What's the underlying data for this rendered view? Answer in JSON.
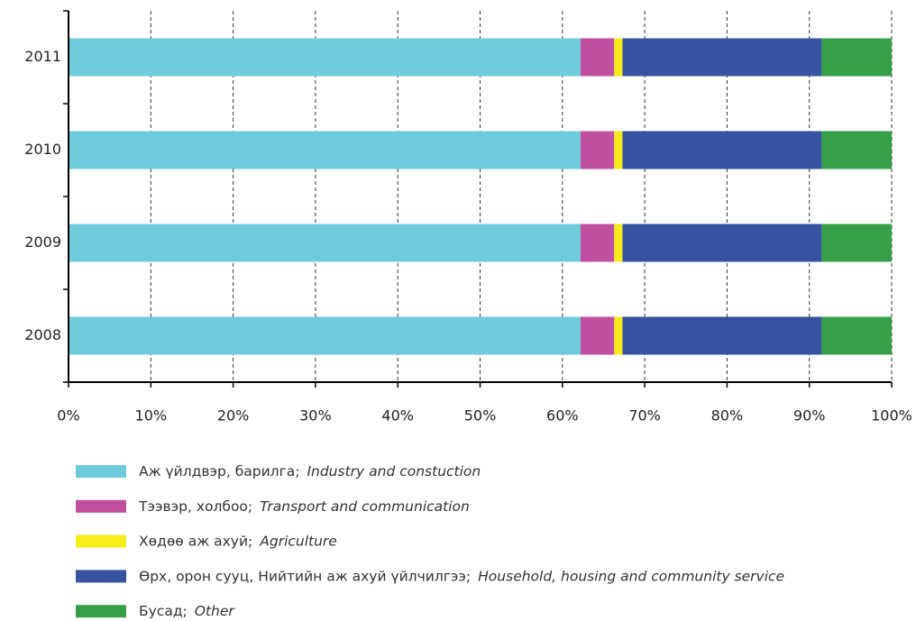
{
  "chart_data": {
    "type": "bar",
    "orientation": "horizontal",
    "stacked": true,
    "categories": [
      "2008",
      "2009",
      "2010",
      "2011"
    ],
    "series": [
      {
        "name": "Аж үйлдвэр, барилга;",
        "name_en": "Industry and constuction",
        "color": "#6dcbdc",
        "values": [
          62.2,
          62.2,
          62.2,
          62.2
        ]
      },
      {
        "name": "Тээвэр, холбоо;",
        "name_en": "Transport and communication",
        "color": "#c04fa0",
        "values": [
          4.1,
          4.1,
          4.1,
          4.1
        ]
      },
      {
        "name": "Хөдөө аж ахуй;",
        "name_en": "Agriculture",
        "color": "#f5ec1a",
        "values": [
          1.0,
          1.0,
          1.0,
          1.0
        ]
      },
      {
        "name": "Өрх, орон сууц, Нийтийн аж ахуй үйлчилгээ;",
        "name_en": "Household, housing and community service",
        "color": "#3652a0",
        "values": [
          24.2,
          24.2,
          24.2,
          24.2
        ]
      },
      {
        "name": "Бусад;",
        "name_en": "Other",
        "color": "#35a048",
        "values": [
          8.5,
          8.5,
          8.5,
          8.5
        ]
      }
    ],
    "xlim": [
      0,
      100
    ],
    "xticks": [
      {
        "value": 0,
        "label": "0%"
      },
      {
        "value": 10,
        "label": "10%"
      },
      {
        "value": 20,
        "label": "20%"
      },
      {
        "value": 30,
        "label": "30%"
      },
      {
        "value": 40,
        "label": "40%"
      },
      {
        "value": 50,
        "label": "50%"
      },
      {
        "value": 60,
        "label": "60%"
      },
      {
        "value": 70,
        "label": "70%"
      },
      {
        "value": 80,
        "label": "80%"
      },
      {
        "value": 90,
        "label": "90%"
      },
      {
        "value": 100,
        "label": "100%"
      }
    ],
    "grid": true
  }
}
